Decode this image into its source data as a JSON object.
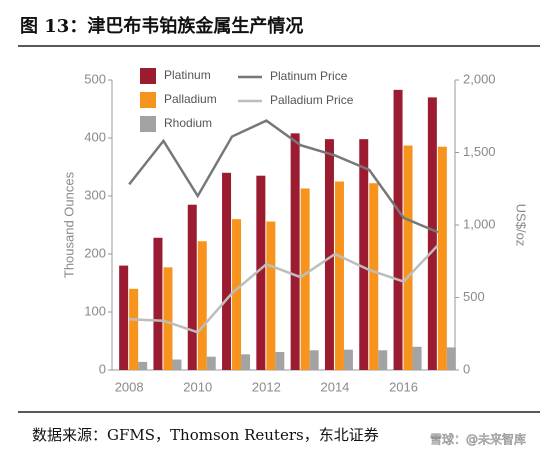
{
  "chart_data": {
    "type": "bar",
    "title": "图 13：津巴布韦铂族金属生产情况",
    "y_label": "Thousand Ounces",
    "y2_label": "US$/oz",
    "source": "数据来源：GFMS，Thomson Reuters，东北证券",
    "watermark": "雪球：@未来智库",
    "categories": [
      "2008",
      null,
      "2010",
      null,
      "2012",
      null,
      "2014",
      null,
      "2016",
      null
    ],
    "series": [
      {
        "name": "Platinum",
        "color": "#9b1b30",
        "values": [
          180,
          228,
          285,
          340,
          335,
          408,
          398,
          398,
          483,
          470
        ]
      },
      {
        "name": "Palladium",
        "color": "#f7941d",
        "values": [
          140,
          177,
          222,
          260,
          256,
          313,
          325,
          322,
          387,
          385
        ]
      },
      {
        "name": "Rhodium",
        "color": "#a3a3a3",
        "values": [
          14,
          18,
          23,
          27,
          31,
          34,
          35,
          34,
          40,
          39
        ]
      },
      {
        "name": "Platinum Price",
        "color": "#777777",
        "type": "line",
        "axis": "y2",
        "values": [
          1280,
          1580,
          1200,
          1610,
          1720,
          1550,
          1480,
          1380,
          1050,
          950
        ]
      },
      {
        "name": "Palladium Price",
        "color": "#bdbdbd",
        "type": "line",
        "axis": "y2",
        "values": [
          350,
          340,
          260,
          530,
          730,
          640,
          800,
          690,
          610,
          860
        ]
      }
    ],
    "ylim": [
      0,
      500
    ],
    "yticks": [
      0,
      100,
      200,
      300,
      400,
      500
    ],
    "y2lim": [
      0,
      2000
    ],
    "y2ticks": [
      0,
      500,
      {
        "value": 1000,
        "label": "1,000"
      },
      {
        "value": 1500,
        "label": "1,500"
      },
      {
        "value": 2000,
        "label": "2,000"
      }
    ],
    "grid": false
  }
}
